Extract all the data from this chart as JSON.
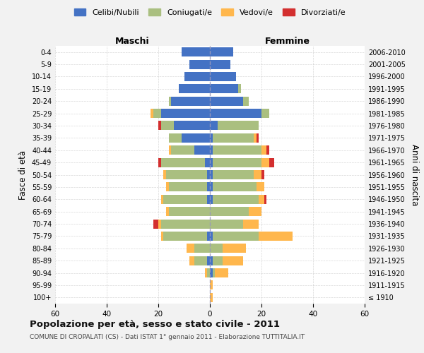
{
  "age_groups": [
    "100+",
    "95-99",
    "90-94",
    "85-89",
    "80-84",
    "75-79",
    "70-74",
    "65-69",
    "60-64",
    "55-59",
    "50-54",
    "45-49",
    "40-44",
    "35-39",
    "30-34",
    "25-29",
    "20-24",
    "15-19",
    "10-14",
    "5-9",
    "0-4"
  ],
  "birth_years": [
    "≤ 1910",
    "1911-1915",
    "1916-1920",
    "1921-1925",
    "1926-1930",
    "1931-1935",
    "1936-1940",
    "1941-1945",
    "1946-1950",
    "1951-1955",
    "1956-1960",
    "1961-1965",
    "1966-1970",
    "1971-1975",
    "1976-1980",
    "1981-1985",
    "1986-1990",
    "1991-1995",
    "1996-2000",
    "2001-2005",
    "2006-2010"
  ],
  "colors": {
    "celibi": "#4472C4",
    "coniugati": "#AABF80",
    "vedovi": "#FFB74D",
    "divorziati": "#D32F2F"
  },
  "males": {
    "celibi": [
      0,
      0,
      0,
      1,
      0,
      1,
      0,
      0,
      1,
      1,
      1,
      2,
      6,
      11,
      14,
      19,
      15,
      12,
      10,
      8,
      11
    ],
    "coniugati": [
      0,
      0,
      1,
      5,
      6,
      17,
      19,
      16,
      17,
      15,
      16,
      17,
      9,
      5,
      5,
      3,
      1,
      0,
      0,
      0,
      0
    ],
    "vedovi": [
      0,
      0,
      1,
      2,
      3,
      1,
      1,
      1,
      1,
      1,
      1,
      0,
      1,
      0,
      0,
      1,
      0,
      0,
      0,
      0,
      0
    ],
    "divorziati": [
      0,
      0,
      0,
      0,
      0,
      0,
      2,
      0,
      0,
      0,
      0,
      1,
      0,
      0,
      1,
      0,
      0,
      0,
      0,
      0,
      0
    ]
  },
  "females": {
    "celibi": [
      0,
      0,
      1,
      1,
      0,
      1,
      0,
      0,
      1,
      1,
      1,
      1,
      1,
      1,
      3,
      20,
      13,
      11,
      10,
      8,
      9
    ],
    "coniugati": [
      0,
      0,
      1,
      4,
      5,
      18,
      13,
      15,
      18,
      17,
      16,
      19,
      19,
      16,
      16,
      3,
      2,
      1,
      0,
      0,
      0
    ],
    "vedovi": [
      1,
      1,
      5,
      8,
      9,
      13,
      6,
      5,
      2,
      3,
      3,
      3,
      2,
      1,
      0,
      0,
      0,
      0,
      0,
      0,
      0
    ],
    "divorziati": [
      0,
      0,
      0,
      0,
      0,
      0,
      0,
      0,
      1,
      0,
      1,
      2,
      1,
      1,
      0,
      0,
      0,
      0,
      0,
      0,
      0
    ]
  },
  "xlim": 60,
  "title": "Popolazione per età, sesso e stato civile - 2011",
  "subtitle": "COMUNE DI CROPALATI (CS) - Dati ISTAT 1° gennaio 2011 - Elaborazione TUTTITALIA.IT",
  "ylabel_left": "Fasce di età",
  "ylabel_right": "Anni di nascita",
  "xlabel_maschi": "Maschi",
  "xlabel_femmine": "Femmine",
  "legend_labels": [
    "Celibi/Nubili",
    "Coniugati/e",
    "Vedovi/e",
    "Divorziati/e"
  ],
  "bg_color": "#F2F2F2",
  "plot_bg_color": "#FFFFFF"
}
